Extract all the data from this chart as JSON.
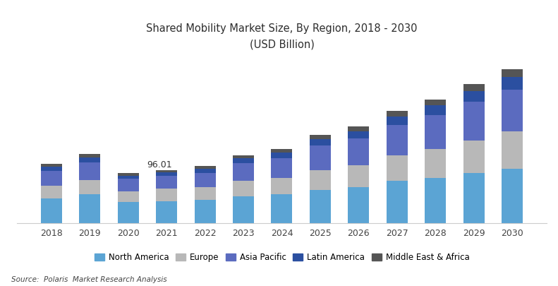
{
  "title_line1": "Shared Mobility Market Size, By Region, 2018 - 2030",
  "title_line2": "(USD Billion)",
  "years": [
    2018,
    2019,
    2020,
    2021,
    2022,
    2023,
    2024,
    2025,
    2026,
    2027,
    2028,
    2029,
    2030
  ],
  "regions": [
    "North America",
    "Europe",
    "Asia Pacific",
    "Latin America",
    "Middle East & Africa"
  ],
  "colors": [
    "#5ba4d4",
    "#b8b8b8",
    "#5b6bbf",
    "#2b4fa0",
    "#555555"
  ],
  "data": {
    "North America": [
      45,
      52,
      38,
      40,
      42,
      48,
      52,
      60,
      65,
      76,
      82,
      90,
      98
    ],
    "Europe": [
      22,
      26,
      20,
      22,
      23,
      28,
      30,
      36,
      40,
      46,
      52,
      60,
      68
    ],
    "Asia Pacific": [
      28,
      32,
      22,
      24,
      26,
      32,
      36,
      44,
      48,
      56,
      62,
      70,
      76
    ],
    "Latin America": [
      7,
      9,
      6,
      6,
      7,
      9,
      10,
      12,
      13,
      15,
      17,
      19,
      22
    ],
    "Middle East & Africa": [
      5,
      6,
      4,
      4,
      5,
      6,
      6,
      8,
      9,
      10,
      11,
      13,
      14
    ]
  },
  "annotation_year": 2021,
  "annotation_text": "96.01",
  "source_text": "Source:  Polaris  Market Research Analysis",
  "bar_width": 0.55,
  "background_color": "#ffffff",
  "grid_color": "#e8e8e8",
  "title_color": "#2d2d2d",
  "ylim_factor": 1.08
}
